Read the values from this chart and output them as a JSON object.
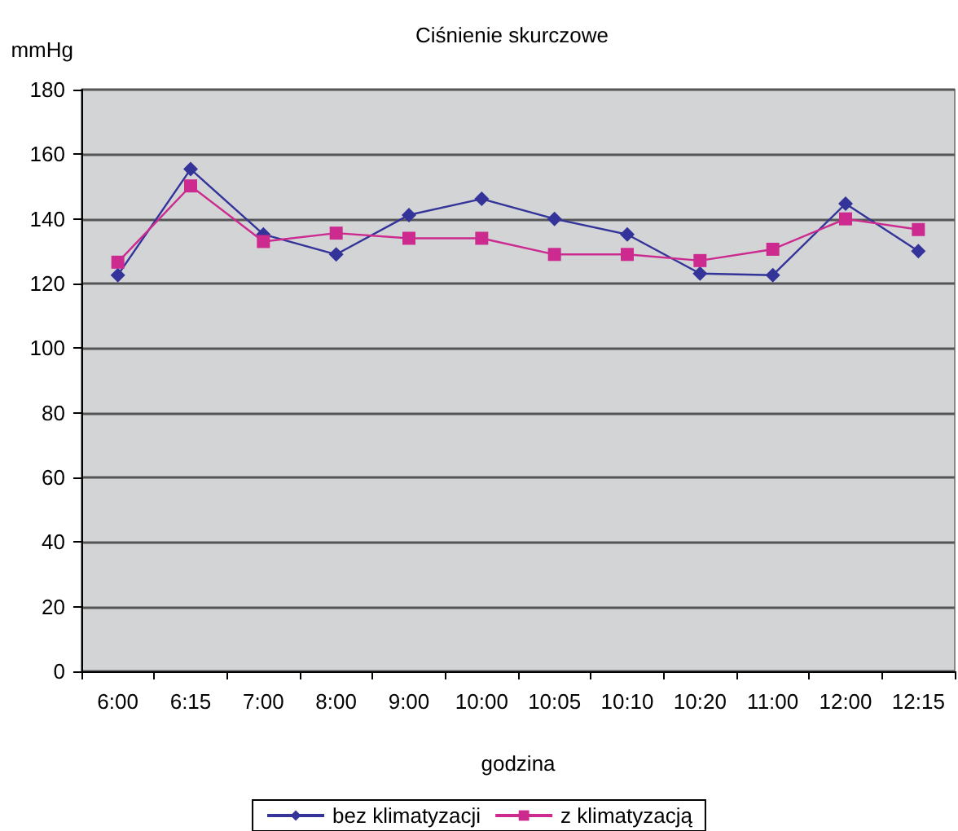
{
  "chart_data": {
    "type": "line",
    "title": "Ciśnienie skurczowe",
    "ylabel": "mmHg",
    "xlabel": "godzina",
    "categories": [
      "6:00",
      "6:15",
      "7:00",
      "8:00",
      "9:00",
      "10:00",
      "10:05",
      "10:10",
      "10:20",
      "11:00",
      "12:00",
      "12:15"
    ],
    "series": [
      {
        "name": "bez klimatyzacji",
        "color": "#333399",
        "marker": "diamond",
        "values": [
          122.6,
          155.4,
          135.2,
          129,
          141.2,
          146.2,
          140,
          135.2,
          123.1,
          122.6,
          144.7,
          130
        ]
      },
      {
        "name": "z klimatyzacją",
        "color": "#cc2a8f",
        "marker": "square",
        "values": [
          126.6,
          150.2,
          133,
          135.6,
          134,
          134,
          129,
          129,
          127.1,
          130.6,
          140,
          136.7
        ]
      }
    ],
    "ylim": [
      0,
      180
    ],
    "yticks": [
      0,
      20,
      40,
      60,
      80,
      100,
      120,
      140,
      160,
      180
    ],
    "grid": "y",
    "legend": "bottom"
  }
}
